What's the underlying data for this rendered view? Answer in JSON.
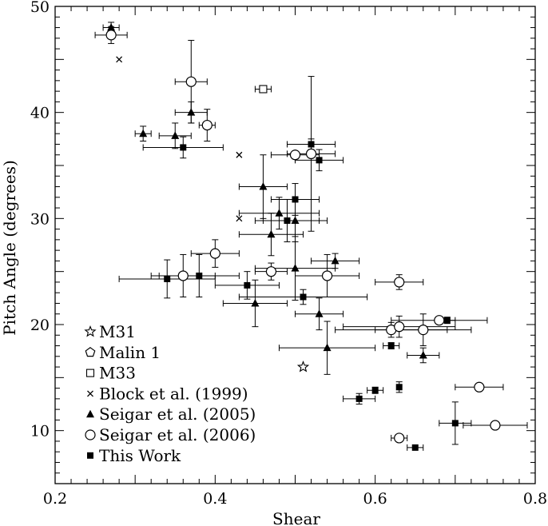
{
  "chart_data": {
    "type": "scatter",
    "title": "",
    "xlabel": "Shear",
    "ylabel": "Pitch Angle (degrees)",
    "xlim": [
      0.2,
      0.8
    ],
    "ylim": [
      5,
      50
    ],
    "xticks": [
      0.2,
      0.4,
      0.6,
      0.8
    ],
    "xtick_labels": [
      "0.2",
      "0.4",
      "0.6",
      "0.8"
    ],
    "yticks": [
      10,
      20,
      30,
      40,
      50
    ],
    "ytick_labels": [
      "10",
      "20",
      "30",
      "40",
      "50"
    ],
    "grid": false,
    "legend_position": "bottom-left",
    "series": [
      {
        "name": "M31",
        "marker": "star",
        "points": [
          {
            "x": 0.51,
            "y": 16.0,
            "xe": 0.0,
            "ye": 0.0
          }
        ]
      },
      {
        "name": "Malin 1",
        "marker": "pentagon",
        "points": [
          {
            "x": 0.5,
            "y": 36.0,
            "xe": 0.0,
            "ye": 0.0
          }
        ]
      },
      {
        "name": "M33",
        "marker": "square-open",
        "points": [
          {
            "x": 0.46,
            "y": 42.2,
            "xe": 0.01,
            "ye": 0.0
          }
        ]
      },
      {
        "name": "Block et al. (1999)",
        "marker": "cross",
        "points": [
          {
            "x": 0.28,
            "y": 45.0,
            "xe": 0.0,
            "ye": 0.0
          },
          {
            "x": 0.43,
            "y": 36.0,
            "xe": 0.0,
            "ye": 0.0
          },
          {
            "x": 0.43,
            "y": 30.0,
            "xe": 0.0,
            "ye": 0.0
          }
        ]
      },
      {
        "name": "Seigar et al. (2005)",
        "marker": "triangle-filled",
        "points": [
          {
            "x": 0.27,
            "y": 48.0,
            "xe": 0.01,
            "ye": 0.5
          },
          {
            "x": 0.31,
            "y": 38.0,
            "xe": 0.01,
            "ye": 0.7
          },
          {
            "x": 0.35,
            "y": 37.8,
            "xe": 0.02,
            "ye": 1.2
          },
          {
            "x": 0.37,
            "y": 40.0,
            "xe": 0.02,
            "ye": 1.0
          },
          {
            "x": 0.46,
            "y": 33.0,
            "xe": 0.03,
            "ye": 3.0
          },
          {
            "x": 0.48,
            "y": 30.5,
            "xe": 0.05,
            "ye": 1.5
          },
          {
            "x": 0.47,
            "y": 28.5,
            "xe": 0.04,
            "ye": 2.0
          },
          {
            "x": 0.5,
            "y": 29.8,
            "xe": 0.04,
            "ye": 2.0
          },
          {
            "x": 0.5,
            "y": 25.3,
            "xe": 0.05,
            "ye": 3.0
          },
          {
            "x": 0.55,
            "y": 26.0,
            "xe": 0.03,
            "ye": 0.7
          },
          {
            "x": 0.45,
            "y": 22.0,
            "xe": 0.04,
            "ye": 2.2
          },
          {
            "x": 0.53,
            "y": 21.0,
            "xe": 0.03,
            "ye": 1.5
          },
          {
            "x": 0.54,
            "y": 17.8,
            "xe": 0.06,
            "ye": 2.5
          },
          {
            "x": 0.66,
            "y": 17.1,
            "xe": 0.02,
            "ye": 0.7
          }
        ]
      },
      {
        "name": "Seigar et al. (2006)",
        "marker": "circle-open",
        "points": [
          {
            "x": 0.27,
            "y": 47.3,
            "xe": 0.02,
            "ye": 0.8
          },
          {
            "x": 0.37,
            "y": 42.9,
            "xe": 0.02,
            "ye": 3.9
          },
          {
            "x": 0.39,
            "y": 38.8,
            "xe": 0.01,
            "ye": 1.5
          },
          {
            "x": 0.5,
            "y": 36.0,
            "xe": 0.03,
            "ye": 0.0
          },
          {
            "x": 0.52,
            "y": 36.1,
            "xe": 0.03,
            "ye": 7.3
          },
          {
            "x": 0.4,
            "y": 26.7,
            "xe": 0.03,
            "ye": 1.3
          },
          {
            "x": 0.47,
            "y": 25.0,
            "xe": 0.02,
            "ye": 0.8
          },
          {
            "x": 0.36,
            "y": 24.6,
            "xe": 0.04,
            "ye": 2.0
          },
          {
            "x": 0.54,
            "y": 24.6,
            "xe": 0.04,
            "ye": 2.0
          },
          {
            "x": 0.63,
            "y": 24.0,
            "xe": 0.03,
            "ye": 0.7
          },
          {
            "x": 0.62,
            "y": 19.5,
            "xe": 0.07,
            "ye": 0.7
          },
          {
            "x": 0.63,
            "y": 19.8,
            "xe": 0.07,
            "ye": 1.0
          },
          {
            "x": 0.66,
            "y": 19.5,
            "xe": 0.06,
            "ye": 1.5
          },
          {
            "x": 0.68,
            "y": 20.4,
            "xe": 0.06,
            "ye": 0.0
          },
          {
            "x": 0.73,
            "y": 14.1,
            "xe": 0.03,
            "ye": 0.3
          },
          {
            "x": 0.63,
            "y": 9.3,
            "xe": 0.01,
            "ye": 0.3
          },
          {
            "x": 0.75,
            "y": 10.5,
            "xe": 0.04,
            "ye": 0.3
          }
        ]
      },
      {
        "name": "This Work",
        "marker": "square-filled",
        "points": [
          {
            "x": 0.36,
            "y": 36.7,
            "xe": 0.05,
            "ye": 1.0
          },
          {
            "x": 0.52,
            "y": 37.0,
            "xe": 0.03,
            "ye": 0.5
          },
          {
            "x": 0.53,
            "y": 35.5,
            "xe": 0.03,
            "ye": 1.0
          },
          {
            "x": 0.5,
            "y": 31.8,
            "xe": 0.03,
            "ye": 1.5
          },
          {
            "x": 0.49,
            "y": 29.8,
            "xe": 0.04,
            "ye": 2.0
          },
          {
            "x": 0.34,
            "y": 24.3,
            "xe": 0.06,
            "ye": 1.8
          },
          {
            "x": 0.38,
            "y": 24.6,
            "xe": 0.05,
            "ye": 2.0
          },
          {
            "x": 0.44,
            "y": 23.7,
            "xe": 0.04,
            "ye": 1.3
          },
          {
            "x": 0.51,
            "y": 22.6,
            "xe": 0.08,
            "ye": 0.7
          },
          {
            "x": 0.62,
            "y": 18.0,
            "xe": 0.01,
            "ye": 0.3
          },
          {
            "x": 0.69,
            "y": 20.4,
            "xe": 0.01,
            "ye": 0.3
          },
          {
            "x": 0.58,
            "y": 13.0,
            "xe": 0.02,
            "ye": 0.5
          },
          {
            "x": 0.6,
            "y": 13.8,
            "xe": 0.01,
            "ye": 0.3
          },
          {
            "x": 0.63,
            "y": 14.1,
            "xe": 0.0,
            "ye": 0.5
          },
          {
            "x": 0.65,
            "y": 8.4,
            "xe": 0.01,
            "ye": 0.0
          },
          {
            "x": 0.7,
            "y": 10.7,
            "xe": 0.02,
            "ye": 2.0
          }
        ]
      }
    ]
  }
}
